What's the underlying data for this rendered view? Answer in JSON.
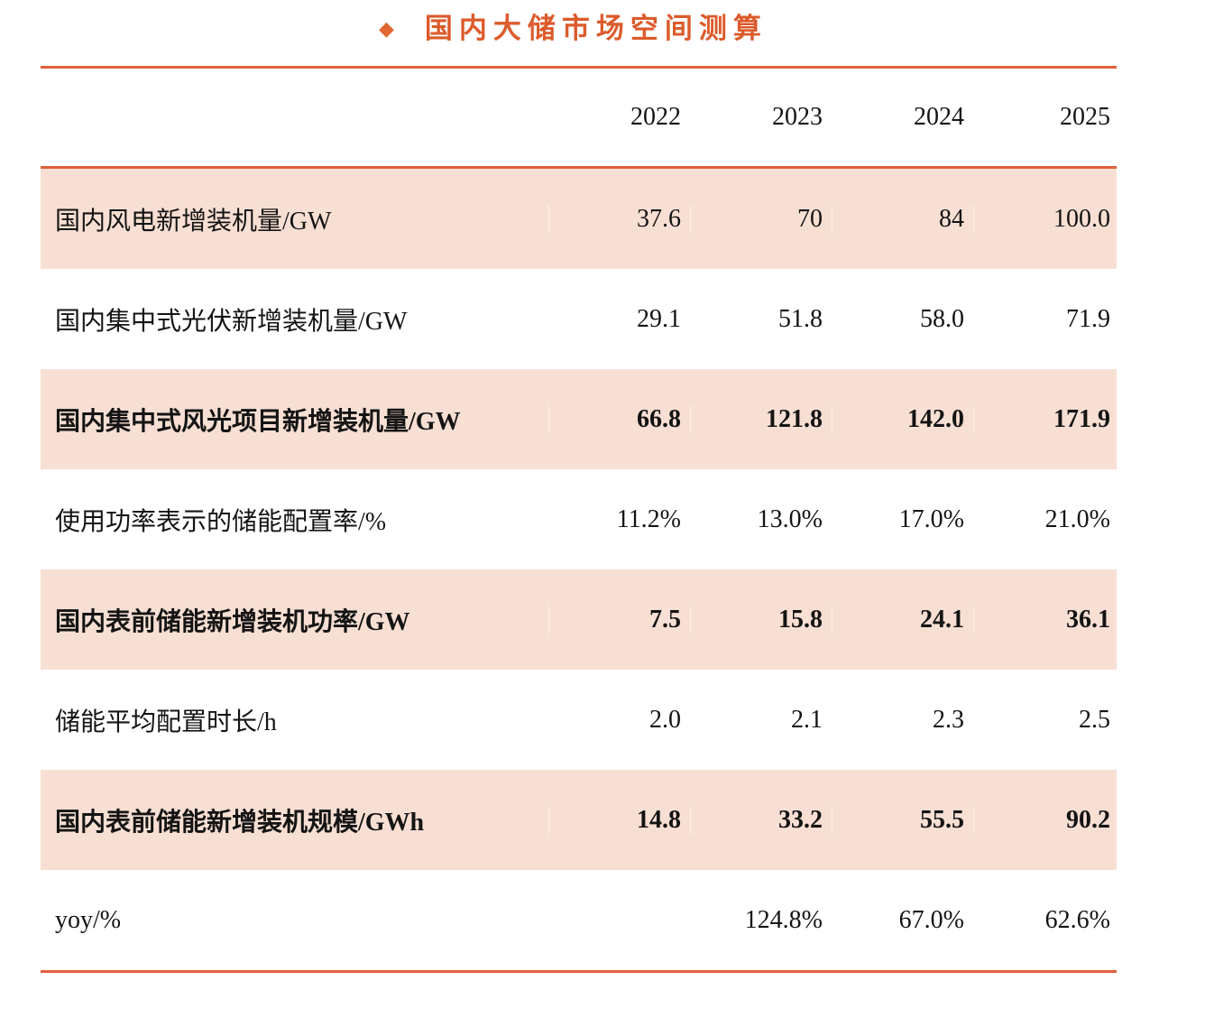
{
  "title": {
    "bullet": "◆",
    "text": "国内大储市场空间测算"
  },
  "colors": {
    "accent_title": "#DC5B2B",
    "rule_line": "#E2603C",
    "row_shade": "#F8DFD3",
    "text": "#141414"
  },
  "table": {
    "columns": [
      "2022",
      "2023",
      "2024",
      "2025"
    ],
    "rows": [
      {
        "label": "国内风电新增装机量/GW",
        "values": [
          "37.6",
          "70",
          "84",
          "100.0"
        ]
      },
      {
        "label": "国内集中式光伏新增装机量/GW",
        "values": [
          "29.1",
          "51.8",
          "58.0",
          "71.9"
        ]
      },
      {
        "label": "国内集中式风光项目新增装机量/GW",
        "values": [
          "66.8",
          "121.8",
          "142.0",
          "171.9"
        ]
      },
      {
        "label": "使用功率表示的储能配置率/%",
        "values": [
          "11.2%",
          "13.0%",
          "17.0%",
          "21.0%"
        ]
      },
      {
        "label": "国内表前储能新增装机功率/GW",
        "values": [
          "7.5",
          "15.8",
          "24.1",
          "36.1"
        ]
      },
      {
        "label": "储能平均配置时长/h",
        "values": [
          "2.0",
          "2.1",
          "2.3",
          "2.5"
        ]
      },
      {
        "label": "国内表前储能新增装机规模/GWh",
        "values": [
          "14.8",
          "33.2",
          "55.5",
          "90.2"
        ]
      },
      {
        "label": "yoy/%",
        "values": [
          "",
          "124.8%",
          "67.0%",
          "62.6%"
        ]
      }
    ]
  },
  "chart_data": {
    "type": "table",
    "title": "国内大储市场空间测算",
    "columns": [
      "2022",
      "2023",
      "2024",
      "2025"
    ],
    "rows": [
      {
        "label": "国内风电新增装机量/GW",
        "values": [
          37.6,
          70,
          84,
          100.0
        ]
      },
      {
        "label": "国内集中式光伏新增装机量/GW",
        "values": [
          29.1,
          51.8,
          58.0,
          71.9
        ]
      },
      {
        "label": "国内集中式风光项目新增装机量/GW",
        "values": [
          66.8,
          121.8,
          142.0,
          171.9
        ]
      },
      {
        "label": "使用功率表示的储能配置率/%",
        "values": [
          "11.2%",
          "13.0%",
          "17.0%",
          "21.0%"
        ]
      },
      {
        "label": "国内表前储能新增装机功率/GW",
        "values": [
          7.5,
          15.8,
          24.1,
          36.1
        ]
      },
      {
        "label": "储能平均配置时长/h",
        "values": [
          2.0,
          2.1,
          2.3,
          2.5
        ]
      },
      {
        "label": "国内表前储能新增装机规模/GWh",
        "values": [
          14.8,
          33.2,
          55.5,
          90.2
        ]
      },
      {
        "label": "yoy/%",
        "values": [
          null,
          "124.8%",
          "67.0%",
          "62.6%"
        ]
      }
    ]
  }
}
